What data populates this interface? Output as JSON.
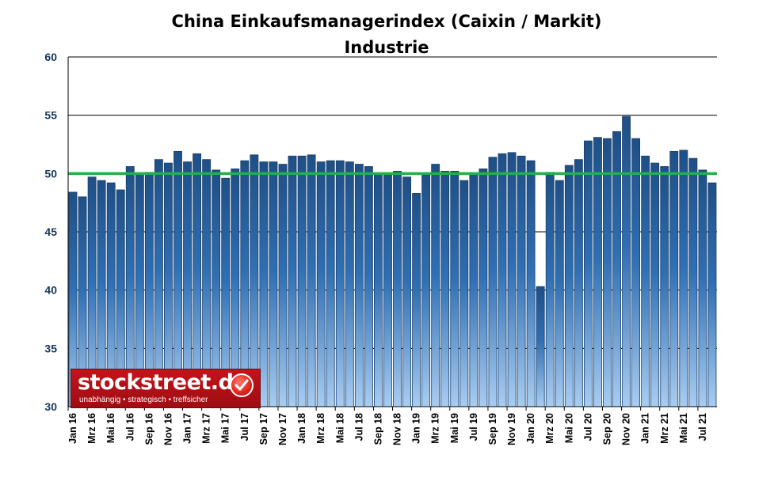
{
  "chart_data": {
    "type": "bar",
    "title": "China Einkaufsmanagerindex (Caixin / Markit)",
    "subtitle": "Industrie",
    "xlabel": "",
    "ylabel": "",
    "ylim": [
      30,
      60
    ],
    "yticks": [
      "30",
      "35",
      "40",
      "45",
      "50",
      "55",
      "60"
    ],
    "grid": "horizontal",
    "reference_line": {
      "value": 50,
      "color": "#1db34a"
    },
    "bar_color": "#2e6ca8",
    "tick_labels": [
      "Jan 16",
      "Mrz 16",
      "Mai 16",
      "Jul 16",
      "Sep 16",
      "Nov 16",
      "Jan 17",
      "Mrz 17",
      "Mai 17",
      "Jul 17",
      "Sep 17",
      "Nov 17",
      "Jan 18",
      "Mrz 18",
      "Mai 18",
      "Jul 18",
      "Sep 18",
      "Nov 18",
      "Jan 19",
      "Mrz 19",
      "Mai 19",
      "Jul 19",
      "Sep 19",
      "Nov 19",
      "Jan 20",
      "Mrz 20",
      "Mai 20",
      "Jul 20",
      "Sep 20",
      "Nov 20",
      "Jan 21",
      "Mrz 21",
      "Mai 21",
      "Jul 21"
    ],
    "values": [
      48.4,
      48.0,
      49.7,
      49.4,
      49.2,
      48.6,
      50.6,
      50.0,
      50.1,
      51.2,
      50.9,
      51.9,
      51.0,
      51.7,
      51.2,
      50.3,
      49.6,
      50.4,
      51.1,
      51.6,
      51.0,
      51.0,
      50.8,
      51.5,
      51.5,
      51.6,
      51.0,
      51.1,
      51.1,
      51.0,
      50.8,
      50.6,
      50.0,
      50.0,
      50.2,
      49.7,
      48.3,
      49.9,
      50.8,
      50.2,
      50.2,
      49.4,
      49.9,
      50.4,
      51.4,
      51.7,
      51.8,
      51.5,
      51.1,
      40.3,
      50.1,
      49.4,
      50.7,
      51.2,
      52.8,
      53.1,
      53.0,
      53.6,
      54.9,
      53.0,
      51.5,
      50.9,
      50.6,
      51.9,
      52.0,
      51.3,
      50.3,
      49.2
    ]
  },
  "logo": {
    "name": "stockstreet.de",
    "tagline": "unabhängig • strategisch • treffsicher"
  }
}
